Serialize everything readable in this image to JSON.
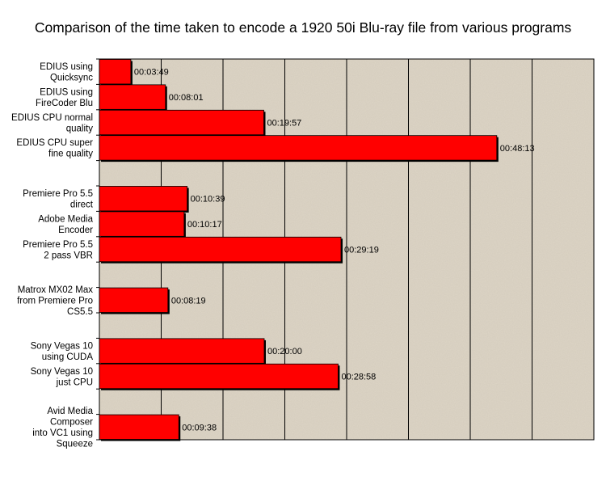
{
  "chart_data": {
    "type": "bar",
    "orientation": "horizontal",
    "title": "Comparison of the time taken to encode a 1920 50i Blu-ray file from various programs",
    "xlabel": "",
    "ylabel": "",
    "xlim": [
      0,
      3600
    ],
    "grid": true,
    "legend": "none",
    "bar_color": "#ff0000",
    "plot_background": "#ddd5c6",
    "categories": [
      [
        "EDIUS using",
        "Quicksync"
      ],
      [
        "EDIUS using",
        "FireCoder Blu"
      ],
      [
        "EDIUS CPU normal",
        "quality"
      ],
      [
        "EDIUS CPU super",
        "fine quality"
      ],
      [],
      [
        "Premiere Pro 5.5",
        "direct"
      ],
      [
        "Adobe Media",
        "Encoder"
      ],
      [
        "Premiere Pro 5.5",
        "2 pass VBR"
      ],
      [],
      [
        "Matrox MX02 Max",
        "from Premiere Pro",
        "CS5.5"
      ],
      [],
      [
        "Sony Vegas 10",
        "using CUDA"
      ],
      [
        "Sony Vegas 10",
        "just CPU"
      ],
      [],
      [
        "Avid Media",
        "Composer",
        "into VC1 using",
        "Squeeze"
      ]
    ],
    "values": [
      229,
      481,
      1197,
      2893,
      null,
      639,
      617,
      1759,
      null,
      499,
      null,
      1200,
      1738,
      null,
      578
    ],
    "value_labels": [
      "00:03:49",
      "00:08:01",
      "00:19:57",
      "00:48:13",
      "",
      "00:10:39",
      "00:10:17",
      "00:29:19",
      "",
      "00:08:19",
      "",
      "00:20:00",
      "00:28:58",
      "",
      "00:09:38"
    ]
  }
}
